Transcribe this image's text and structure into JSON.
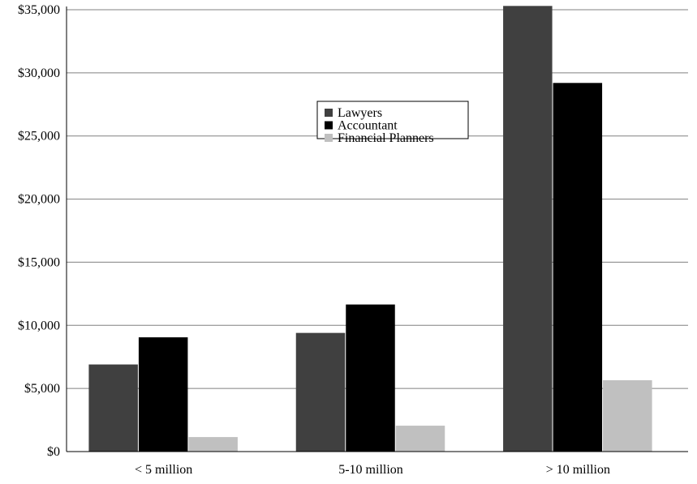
{
  "chart_data": {
    "type": "bar",
    "title": "",
    "xlabel": "",
    "ylabel": "",
    "categories": [
      "< 5 million",
      "5-10 million",
      "> 10 million"
    ],
    "series": [
      {
        "name": "Lawyers",
        "values": [
          6900,
          9400,
          35300
        ],
        "color": "#404040"
      },
      {
        "name": "Accountant",
        "values": [
          9050,
          11650,
          29200
        ],
        "color": "#000000"
      },
      {
        "name": "Financial Planners",
        "values": [
          1150,
          2050,
          5650
        ],
        "color": "#c0c0c0"
      }
    ],
    "ylim": [
      0,
      35000
    ],
    "yticks": [
      0,
      5000,
      10000,
      15000,
      20000,
      25000,
      30000,
      35000
    ],
    "ytick_labels": [
      "$0",
      "$5,000",
      "$10,000",
      "$15,000",
      "$20,000",
      "$25,000",
      "$30,000",
      "$35,000"
    ],
    "grid": true,
    "legend_position": "upper-center"
  }
}
